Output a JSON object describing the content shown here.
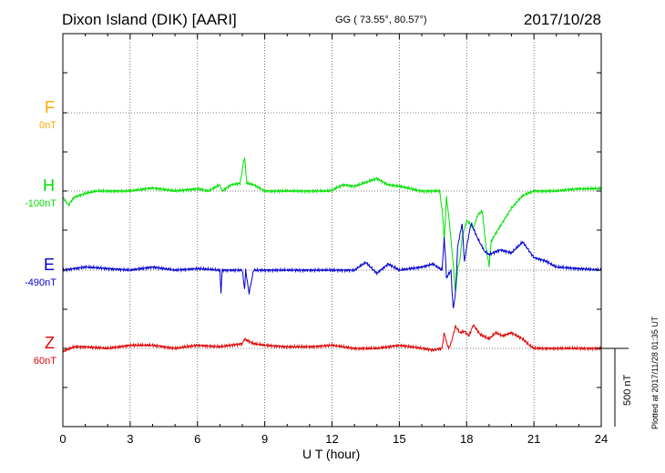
{
  "header": {
    "station": "Dixon Island (DIK)  [AARI]",
    "coords": "GG ( 73.55°,  80.57°)",
    "date": "2017/10/28"
  },
  "footer": {
    "xlabel": "U T (hour)",
    "plotted": "Plotted at 2017/11/28 01:35 UT",
    "scale": "500 nT"
  },
  "channels": [
    {
      "name": "F",
      "baseline": "0nT",
      "color": "#ffa500"
    },
    {
      "name": "H",
      "baseline": "-100nT",
      "color": "#00e000"
    },
    {
      "name": "E",
      "baseline": "-490nT",
      "color": "#0000d0"
    },
    {
      "name": "Z",
      "baseline": "60nT",
      "color": "#e00000"
    }
  ],
  "chart_data": {
    "type": "line",
    "title": "Dixon Island (DIK)  [AARI]",
    "xlabel": "U T (hour)",
    "xlim": [
      0,
      24
    ],
    "x_ticks": [
      0,
      3,
      6,
      9,
      12,
      15,
      18,
      21,
      24
    ],
    "grid": true,
    "scale_bar_nT": 500,
    "series": [
      {
        "name": "H",
        "color": "#00e000",
        "baseline_nT": -100,
        "x": [
          0,
          0.25,
          0.5,
          1,
          1.5,
          2,
          3,
          4,
          5,
          6,
          6.5,
          7,
          7.1,
          7.5,
          7.9,
          8.1,
          8.2,
          8.5,
          9,
          10,
          11,
          11.9,
          12.5,
          13,
          14,
          14.5,
          15,
          16,
          16.8,
          16.95,
          17.0,
          17.1,
          17.2,
          17.35,
          17.5,
          17.6,
          17.7,
          17.8,
          17.9,
          18.0,
          18.1,
          18.3,
          18.5,
          18.7,
          18.85,
          19.0,
          19.1,
          19.3,
          19.6,
          20.0,
          20.5,
          20.8,
          21.0,
          21.3,
          22,
          23,
          24
        ],
        "y": [
          -40,
          -90,
          -40,
          -15,
          0,
          0,
          0,
          20,
          0,
          15,
          0,
          40,
          0,
          40,
          50,
          220,
          50,
          40,
          0,
          0,
          0,
          0,
          40,
          30,
          80,
          40,
          30,
          0,
          0,
          -180,
          -330,
          -40,
          -160,
          -380,
          -650,
          -500,
          -440,
          -300,
          -240,
          -190,
          -200,
          -240,
          -150,
          -130,
          -340,
          -480,
          -320,
          -270,
          -200,
          -110,
          -30,
          -10,
          0,
          0,
          0,
          15,
          15
        ]
      },
      {
        "name": "E",
        "color": "#0000d0",
        "baseline_nT": -490,
        "x": [
          0,
          0.5,
          1,
          2,
          3,
          4,
          5,
          6,
          7,
          7.05,
          7.1,
          8,
          8.1,
          8.15,
          8.3,
          8.5,
          9,
          10,
          11,
          12,
          13,
          13.5,
          14,
          14.5,
          15,
          16,
          16.5,
          16.9,
          17.0,
          17.05,
          17.1,
          17.3,
          17.4,
          17.5,
          17.6,
          17.8,
          17.9,
          18.0,
          18.2,
          18.5,
          18.8,
          19.0,
          19.5,
          20.0,
          20.5,
          21.0,
          21.5,
          22,
          23,
          24
        ],
        "y": [
          0,
          10,
          20,
          10,
          0,
          20,
          0,
          10,
          0,
          -150,
          0,
          0,
          -120,
          0,
          -150,
          0,
          0,
          0,
          0,
          0,
          0,
          50,
          -20,
          40,
          0,
          20,
          40,
          0,
          200,
          100,
          -50,
          0,
          -250,
          -150,
          150,
          300,
          50,
          150,
          300,
          200,
          120,
          100,
          130,
          110,
          180,
          80,
          60,
          20,
          10,
          0
        ]
      },
      {
        "name": "Z",
        "color": "#e00000",
        "baseline_nT": 60,
        "x": [
          0,
          0.5,
          1,
          2,
          3,
          4,
          5,
          6,
          7,
          8,
          8.1,
          8.5,
          9,
          10,
          11,
          12,
          13,
          14,
          15,
          16,
          16.5,
          16.9,
          17.0,
          17.1,
          17.2,
          17.3,
          17.5,
          17.7,
          17.9,
          18.1,
          18.3,
          18.6,
          19.0,
          19.3,
          19.6,
          20.0,
          20.5,
          20.8,
          21.0,
          21.5,
          22,
          23,
          24
        ],
        "y": [
          -20,
          10,
          10,
          0,
          20,
          20,
          0,
          20,
          10,
          30,
          60,
          30,
          20,
          10,
          10,
          20,
          0,
          0,
          20,
          0,
          -10,
          0,
          100,
          40,
          0,
          30,
          140,
          100,
          110,
          80,
          150,
          90,
          60,
          100,
          80,
          100,
          60,
          20,
          0,
          0,
          0,
          0,
          0
        ]
      }
    ]
  }
}
